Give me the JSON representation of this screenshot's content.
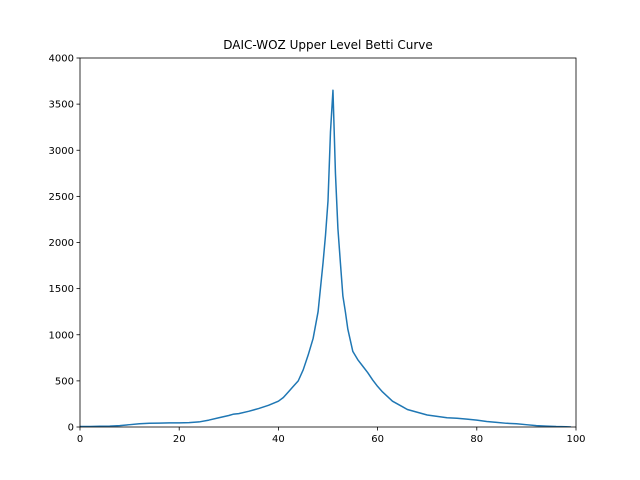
{
  "chart_data": {
    "type": "line",
    "title": "DAIC-WOZ Upper Level Betti Curve",
    "xlabel": "",
    "ylabel": "",
    "xlim": [
      0,
      100
    ],
    "ylim": [
      0,
      4000
    ],
    "x_ticks": [
      0,
      20,
      40,
      60,
      80,
      100
    ],
    "y_ticks": [
      0,
      500,
      1000,
      1500,
      2000,
      2500,
      3000,
      3500,
      4000
    ],
    "grid": false,
    "legend": "none",
    "series": [
      {
        "color": "#1f77b4",
        "x": [
          0,
          2,
          4,
          6,
          8,
          10,
          12,
          14,
          16,
          18,
          20,
          22,
          24,
          26,
          28,
          30,
          31,
          32,
          34,
          36,
          38,
          40,
          41,
          42,
          43,
          44,
          45,
          46,
          47,
          48,
          49,
          49.5,
          50,
          50.5,
          51,
          51.5,
          52,
          52.5,
          53,
          53.5,
          54,
          55,
          56,
          57,
          58,
          59,
          60,
          61,
          62,
          63,
          64,
          65,
          66,
          68,
          70,
          72,
          74,
          76,
          78,
          80,
          82,
          84,
          86,
          88,
          90,
          92,
          94,
          96,
          98,
          99
        ],
        "y": [
          5,
          5,
          8,
          10,
          15,
          25,
          35,
          40,
          42,
          45,
          45,
          48,
          55,
          75,
          100,
          125,
          140,
          145,
          170,
          200,
          235,
          280,
          320,
          380,
          440,
          500,
          620,
          780,
          960,
          1250,
          1780,
          2080,
          2450,
          3200,
          3650,
          2750,
          2150,
          1780,
          1420,
          1250,
          1060,
          820,
          730,
          660,
          590,
          510,
          440,
          380,
          330,
          280,
          250,
          220,
          190,
          160,
          130,
          115,
          100,
          95,
          85,
          75,
          60,
          50,
          40,
          35,
          25,
          15,
          10,
          5,
          3,
          0
        ]
      }
    ]
  }
}
